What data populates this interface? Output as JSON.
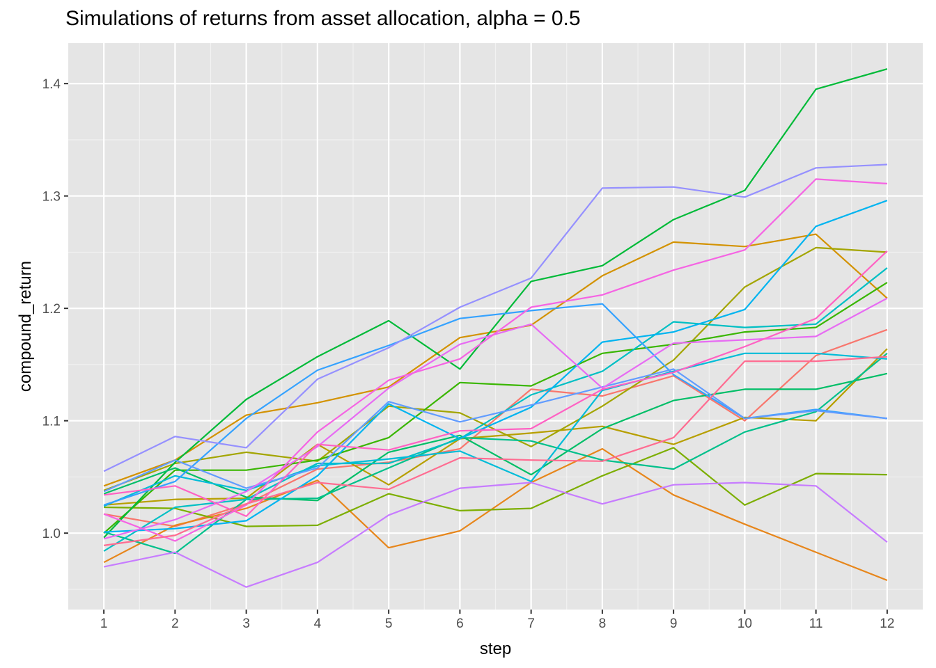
{
  "chart_data": {
    "type": "line",
    "title": "Simulations of returns from asset allocation, alpha = 0.5",
    "xlabel": "step",
    "ylabel": "compound_return",
    "x": [
      1,
      2,
      3,
      4,
      5,
      6,
      7,
      8,
      9,
      10,
      11,
      12
    ],
    "xlim": [
      0.5,
      12.5
    ],
    "ylim": [
      0.932,
      1.436
    ],
    "x_ticks": [
      "1",
      "2",
      "3",
      "4",
      "5",
      "6",
      "7",
      "8",
      "9",
      "10",
      "11",
      "12"
    ],
    "y_ticks": [
      1.0,
      1.1,
      1.2,
      1.3,
      1.4
    ],
    "y_tick_labels": [
      "1.0",
      "1.1",
      "1.2",
      "1.3",
      "1.4"
    ],
    "background": "#e5e5e5",
    "grid": true,
    "legend": "none",
    "series": [
      {
        "color": "#F8766D",
        "values": [
          1.017,
          1.006,
          1.026,
          1.057,
          1.063,
          1.075,
          1.128,
          1.122,
          1.14,
          1.1,
          1.158,
          1.181
        ]
      },
      {
        "color": "#E7861B",
        "values": [
          0.974,
          1.007,
          1.022,
          1.047,
          0.987,
          1.002,
          1.045,
          1.075,
          1.034,
          1.008,
          0.983,
          0.958
        ]
      },
      {
        "color": "#D39200",
        "values": [
          1.042,
          1.065,
          1.105,
          1.116,
          1.13,
          1.174,
          1.185,
          1.229,
          1.259,
          1.255,
          1.266,
          1.209
        ]
      },
      {
        "color": "#B79F00",
        "values": [
          1.025,
          1.03,
          1.031,
          1.079,
          1.043,
          1.084,
          1.089,
          1.095,
          1.079,
          1.103,
          1.1,
          1.164
        ]
      },
      {
        "color": "#A3A500",
        "values": [
          1.038,
          1.062,
          1.072,
          1.064,
          1.113,
          1.107,
          1.077,
          1.113,
          1.154,
          1.219,
          1.254,
          1.25
        ]
      },
      {
        "color": "#7CAE00",
        "values": [
          1.023,
          1.022,
          1.006,
          1.007,
          1.035,
          1.02,
          1.022,
          1.051,
          1.076,
          1.025,
          1.053,
          1.052
        ]
      },
      {
        "color": "#39B600",
        "values": [
          1.0,
          1.056,
          1.056,
          1.065,
          1.085,
          1.134,
          1.131,
          1.16,
          1.168,
          1.179,
          1.183,
          1.223
        ]
      },
      {
        "color": "#00BA38",
        "values": [
          0.996,
          1.063,
          1.119,
          1.157,
          1.189,
          1.146,
          1.224,
          1.238,
          1.279,
          1.305,
          1.395,
          1.413
        ]
      },
      {
        "color": "#00BE67",
        "values": [
          1.035,
          1.058,
          1.032,
          1.029,
          1.072,
          1.087,
          1.052,
          1.093,
          1.118,
          1.128,
          1.128,
          1.142
        ]
      },
      {
        "color": "#00C08B",
        "values": [
          1.001,
          0.982,
          1.03,
          1.031,
          1.058,
          1.085,
          1.082,
          1.065,
          1.057,
          1.09,
          1.108,
          1.16
        ]
      },
      {
        "color": "#00BFC4",
        "values": [
          0.984,
          1.023,
          1.03,
          1.062,
          1.062,
          1.084,
          1.123,
          1.144,
          1.188,
          1.183,
          1.186,
          1.236
        ]
      },
      {
        "color": "#00BCD8",
        "values": [
          1.024,
          1.051,
          1.038,
          1.06,
          1.066,
          1.073,
          1.046,
          1.127,
          1.144,
          1.16,
          1.16,
          1.155
        ]
      },
      {
        "color": "#00B4F0",
        "values": [
          1.001,
          1.004,
          1.011,
          1.051,
          1.115,
          1.084,
          1.112,
          1.17,
          1.179,
          1.199,
          1.273,
          1.296
        ]
      },
      {
        "color": "#35A2FF",
        "values": [
          1.025,
          1.046,
          1.102,
          1.145,
          1.167,
          1.191,
          1.198,
          1.204,
          1.141,
          1.102,
          1.11,
          1.102
        ]
      },
      {
        "color": "#619CFF",
        "values": [
          1.037,
          1.065,
          1.04,
          1.058,
          1.117,
          1.099,
          1.114,
          1.13,
          1.146,
          1.102,
          1.109,
          1.102
        ]
      },
      {
        "color": "#9590FF",
        "values": [
          1.055,
          1.086,
          1.076,
          1.137,
          1.165,
          1.201,
          1.227,
          1.307,
          1.308,
          1.299,
          1.325,
          1.328
        ]
      },
      {
        "color": "#C77CFF",
        "values": [
          0.97,
          0.983,
          0.952,
          0.974,
          1.016,
          1.04,
          1.045,
          1.026,
          1.043,
          1.045,
          1.042,
          0.992
        ]
      },
      {
        "color": "#E76BF3",
        "values": [
          0.995,
          1.012,
          1.037,
          1.077,
          1.129,
          1.168,
          1.186,
          1.129,
          1.169,
          1.172,
          1.175,
          1.209
        ]
      },
      {
        "color": "#F564E3",
        "values": [
          1.017,
          0.993,
          1.025,
          1.09,
          1.136,
          1.155,
          1.201,
          1.212,
          1.234,
          1.252,
          1.315,
          1.311
        ]
      },
      {
        "color": "#FF61C3",
        "values": [
          1.034,
          1.042,
          1.015,
          1.079,
          1.074,
          1.091,
          1.093,
          1.128,
          1.143,
          1.166,
          1.191,
          1.251
        ]
      },
      {
        "color": "#FF6C91",
        "values": [
          0.989,
          0.998,
          1.026,
          1.045,
          1.039,
          1.067,
          1.065,
          1.064,
          1.085,
          1.153,
          1.153,
          1.157
        ]
      }
    ]
  }
}
